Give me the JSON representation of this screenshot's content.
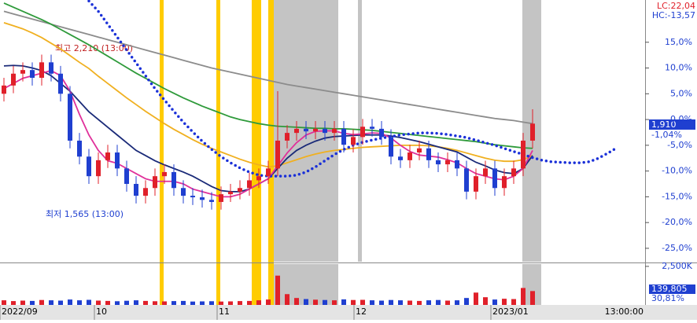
{
  "chart_data": {
    "type": "candlestick",
    "ylim": [
      -27.6,
      23.2
    ],
    "yticks": [
      {
        "value": 15,
        "label": "15,0%"
      },
      {
        "value": 10,
        "label": "10,0%"
      },
      {
        "value": 5,
        "label": "5,0%"
      },
      {
        "value": 0,
        "label": "0,0%"
      },
      {
        "value": -5,
        "label": "-5,0%"
      },
      {
        "value": -10,
        "label": "-10,0%"
      },
      {
        "value": -15,
        "label": "-15,0%"
      },
      {
        "value": -20,
        "label": "-20,0%"
      },
      {
        "value": -25,
        "label": "-25,0%"
      }
    ],
    "xticks": [
      {
        "value": 0,
        "label": "2022/09"
      },
      {
        "value": 10,
        "label": "10"
      },
      {
        "value": 23,
        "label": "11"
      },
      {
        "value": 37.5,
        "label": "12"
      },
      {
        "value": 52,
        "label": "2023/01"
      }
    ],
    "time_label": "13:00:00",
    "open": [
      5.0,
      6.6,
      8.9,
      9.6,
      8.1,
      11.1,
      8.9,
      5.0,
      -4.1,
      -7.2,
      -11.0,
      -7.9,
      -6.4,
      -9.5,
      -12.5,
      -14.8,
      -13.3,
      -11.0,
      -10.2,
      -13.3,
      -14.8,
      -15.1,
      -15.6,
      -16.0,
      -14.5,
      -14.0,
      -13.3,
      -11.8,
      -11.0,
      -9.5,
      -4.1,
      -2.6,
      -1.8,
      -2.3,
      -1.8,
      -2.6,
      -1.8,
      -4.9,
      -3.4,
      -1.4,
      -1.8,
      -3.4,
      -7.2,
      -7.9,
      -6.4,
      -5.6,
      -7.9,
      -8.7,
      -7.9,
      -9.5,
      -14.0,
      -11.0,
      -9.5,
      -13.3,
      -11.0,
      -9.5,
      -4.1
    ],
    "high": [
      8.1,
      10.4,
      11.1,
      11.1,
      12.6,
      12.6,
      10.4,
      6.5,
      -2.6,
      -5.7,
      -6.4,
      -4.9,
      -4.9,
      -8.0,
      -11.0,
      -11.8,
      -9.5,
      -8.7,
      -8.7,
      -11.8,
      -13.3,
      -13.6,
      -14.1,
      -13.0,
      -12.5,
      -11.8,
      -10.3,
      -9.5,
      -8.0,
      5.5,
      -1.1,
      -0.3,
      -0.3,
      -0.3,
      -0.3,
      -0.3,
      -0.3,
      -1.9,
      0.1,
      0.1,
      -0.3,
      -1.9,
      -5.7,
      -4.9,
      -4.1,
      -4.1,
      -6.4,
      -6.4,
      -6.4,
      -8.0,
      -9.5,
      -8.0,
      -8.0,
      -9.5,
      -8.0,
      -2.6,
      2.0
    ],
    "low": [
      3.5,
      5.1,
      7.4,
      6.6,
      6.6,
      7.4,
      3.5,
      -5.6,
      -8.7,
      -12.5,
      -12.5,
      -9.4,
      -11.0,
      -14.0,
      -16.3,
      -16.3,
      -14.8,
      -12.5,
      -14.8,
      -16.3,
      -16.6,
      -17.1,
      -17.5,
      -17.5,
      -16.0,
      -15.5,
      -14.8,
      -13.3,
      -12.5,
      -11.0,
      -5.6,
      -4.1,
      -3.8,
      -3.8,
      -4.1,
      -4.1,
      -6.4,
      -6.4,
      -4.9,
      -3.3,
      -4.9,
      -8.7,
      -9.4,
      -9.4,
      -7.9,
      -9.4,
      -10.2,
      -10.2,
      -11.0,
      -15.5,
      -15.5,
      -12.5,
      -14.8,
      -14.8,
      -12.5,
      -11.0,
      -5.6
    ],
    "close": [
      6.6,
      8.9,
      9.6,
      8.1,
      11.1,
      8.9,
      5.0,
      -4.1,
      -7.2,
      -11.0,
      -7.9,
      -6.4,
      -9.5,
      -12.5,
      -14.8,
      -13.3,
      -11.0,
      -10.2,
      -13.3,
      -14.8,
      -15.1,
      -15.6,
      -16.0,
      -14.5,
      -14.0,
      -13.3,
      -11.8,
      -11.0,
      -9.5,
      -4.1,
      -2.6,
      -1.8,
      -2.3,
      -1.8,
      -2.6,
      -1.8,
      -4.9,
      -3.4,
      -1.4,
      -1.8,
      -3.4,
      -7.2,
      -7.9,
      -6.4,
      -5.6,
      -7.9,
      -8.7,
      -7.9,
      -9.5,
      -14.0,
      -11.0,
      -9.5,
      -13.3,
      -11.0,
      -9.5,
      -4.1,
      -0.8
    ],
    "up_color": "#e0202a",
    "down_color": "#1f3fd0",
    "lines": [
      {
        "color": "#8c8c8c",
        "values": [
          21,
          20.5,
          20,
          19.5,
          19,
          18.5,
          18,
          17.5,
          17,
          16.5,
          16,
          15.5,
          15,
          14.5,
          14,
          13.5,
          13,
          12.5,
          12,
          11.5,
          11,
          10.5,
          10,
          9.6,
          9.2,
          8.8,
          8.4,
          8,
          7.6,
          7.2,
          6.8,
          6.5,
          6.2,
          5.9,
          5.6,
          5.3,
          5,
          4.7,
          4.4,
          4.1,
          3.8,
          3.5,
          3.2,
          2.9,
          2.6,
          2.3,
          2,
          1.7,
          1.4,
          1.1,
          0.8,
          0.5,
          0.2,
          0,
          -0.2,
          -0.5,
          -0.8
        ]
      },
      {
        "color": "#2e9a3a",
        "values": [
          22.6,
          21.8,
          21,
          20.2,
          19.4,
          18.5,
          17.5,
          16.5,
          15.5,
          14.5,
          13.4,
          12.3,
          11.2,
          10.1,
          9,
          8,
          7,
          6,
          5.1,
          4.2,
          3.4,
          2.6,
          1.9,
          1.2,
          0.5,
          0,
          -0.4,
          -0.8,
          -1.1,
          -1.3,
          -1.4,
          -1.5,
          -1.6,
          -1.7,
          -1.7,
          -1.8,
          -1.8,
          -1.9,
          -2.0,
          -2.1,
          -2.3,
          -2.5,
          -2.7,
          -2.9,
          -3.1,
          -3.3,
          -3.5,
          -3.7,
          -3.9,
          -4.1,
          -4.3,
          -4.6,
          -4.9,
          -5.1,
          -5.3,
          -5.5,
          -5.6
        ]
      },
      {
        "color": "#f0b020",
        "values": [
          18.8,
          18.2,
          17.6,
          16.8,
          15.9,
          14.8,
          13.7,
          12.4,
          11.1,
          9.9,
          8.4,
          7,
          5.6,
          4.2,
          2.9,
          1.6,
          0.4,
          -0.8,
          -1.9,
          -2.9,
          -3.9,
          -4.8,
          -5.6,
          -6.3,
          -7,
          -7.7,
          -8.3,
          -8.8,
          -9.2,
          -9,
          -8.4,
          -7.8,
          -7.2,
          -6.7,
          -6.3,
          -6,
          -5.8,
          -5.6,
          -5.4,
          -5.3,
          -5.2,
          -5.1,
          -5,
          -5,
          -5,
          -5.1,
          -5.3,
          -5.6,
          -6,
          -6.5,
          -7,
          -7.5,
          -7.9,
          -8.1,
          -8.1,
          -7.8,
          -7
        ]
      },
      {
        "color": "#1a2a78",
        "values": [
          10.4,
          10.5,
          10.4,
          10,
          9.5,
          8.5,
          7,
          5.5,
          3.5,
          1.5,
          0,
          -1.5,
          -3,
          -4.5,
          -6,
          -7,
          -8,
          -8.8,
          -9.5,
          -10.2,
          -11,
          -12,
          -13,
          -13.8,
          -14,
          -14,
          -13.5,
          -12.5,
          -11.5,
          -9.5,
          -7.5,
          -6,
          -5,
          -4.2,
          -3.6,
          -3.3,
          -3.2,
          -3.1,
          -3.0,
          -3.0,
          -3.0,
          -3.2,
          -3.5,
          -3.9,
          -4.3,
          -4.8,
          -5.3,
          -5.8,
          -6.3,
          -7.3,
          -8.3,
          -9,
          -9.8,
          -10.3,
          -10.5,
          -9.5,
          -7
        ]
      },
      {
        "color": "#e0309a",
        "values": [
          6,
          7,
          8,
          8.5,
          9,
          9.5,
          8.5,
          5.5,
          1,
          -3,
          -6,
          -8,
          -8.5,
          -9.5,
          -10.5,
          -11.5,
          -12,
          -12,
          -12,
          -12.5,
          -13.5,
          -14,
          -14.5,
          -15,
          -15,
          -14.5,
          -13.5,
          -12.5,
          -11.5,
          -9,
          -6.5,
          -4.5,
          -3,
          -2.3,
          -2.2,
          -2.2,
          -2.7,
          -2.9,
          -2.8,
          -2.6,
          -2.7,
          -3.6,
          -5,
          -6.2,
          -6.9,
          -7.1,
          -7.3,
          -7.8,
          -8.4,
          -9.5,
          -10.5,
          -11,
          -11.5,
          -11.7,
          -11,
          -9.5,
          -6
        ]
      },
      {
        "color": "#1a30d8",
        "dotted": true,
        "values": [
          null,
          null,
          null,
          null,
          null,
          null,
          null,
          null,
          null,
          23,
          21,
          18.5,
          16,
          13.5,
          11,
          8.5,
          6,
          3.8,
          1.6,
          -0.5,
          -2.4,
          -4.2,
          -5.8,
          -7.2,
          -8.4,
          -9.4,
          -10.2,
          -10.8,
          -11,
          -11,
          -11,
          -10.8,
          -10.2,
          -9.2,
          -8,
          -6.8,
          -5.8,
          -5,
          -4.4,
          -4,
          -3.6,
          -3.3,
          -3,
          -2.8,
          -2.6,
          -2.6,
          -2.7,
          -2.9,
          -3.2,
          -3.5,
          -4,
          -4.5,
          -5,
          -5.6,
          -6.2,
          -6.8,
          -7.4,
          -7.9,
          -8.2,
          -8.3,
          -8.4,
          -8.4,
          -8.2,
          -7.5,
          -6.5,
          -5.4
        ]
      }
    ],
    "volume": [
      300,
      250,
      280,
      260,
      320,
      300,
      280,
      350,
      300,
      330,
      280,
      260,
      240,
      270,
      300,
      260,
      240,
      230,
      250,
      260,
      220,
      230,
      240,
      220,
      230,
      250,
      260,
      300,
      350,
      1900,
      700,
      450,
      380,
      340,
      320,
      300,
      360,
      320,
      330,
      300,
      280,
      320,
      300,
      280,
      260,
      300,
      320,
      280,
      300,
      450,
      800,
      500,
      350,
      400,
      380,
      1100,
      900
    ],
    "volume_ylim": [
      0,
      2650
    ],
    "volume_ticks": [
      {
        "value": 2500,
        "label": "2,500K"
      }
    ],
    "lc": "LC:22,04",
    "hc": "HC:-13,57",
    "price": "1,910",
    "change": "-1,04%",
    "volume_now": "139,805",
    "volume_pct": "30,81%",
    "high_note": "최고 2,210 (13:00)",
    "low_note": "최저 1,565 (13:00)"
  }
}
